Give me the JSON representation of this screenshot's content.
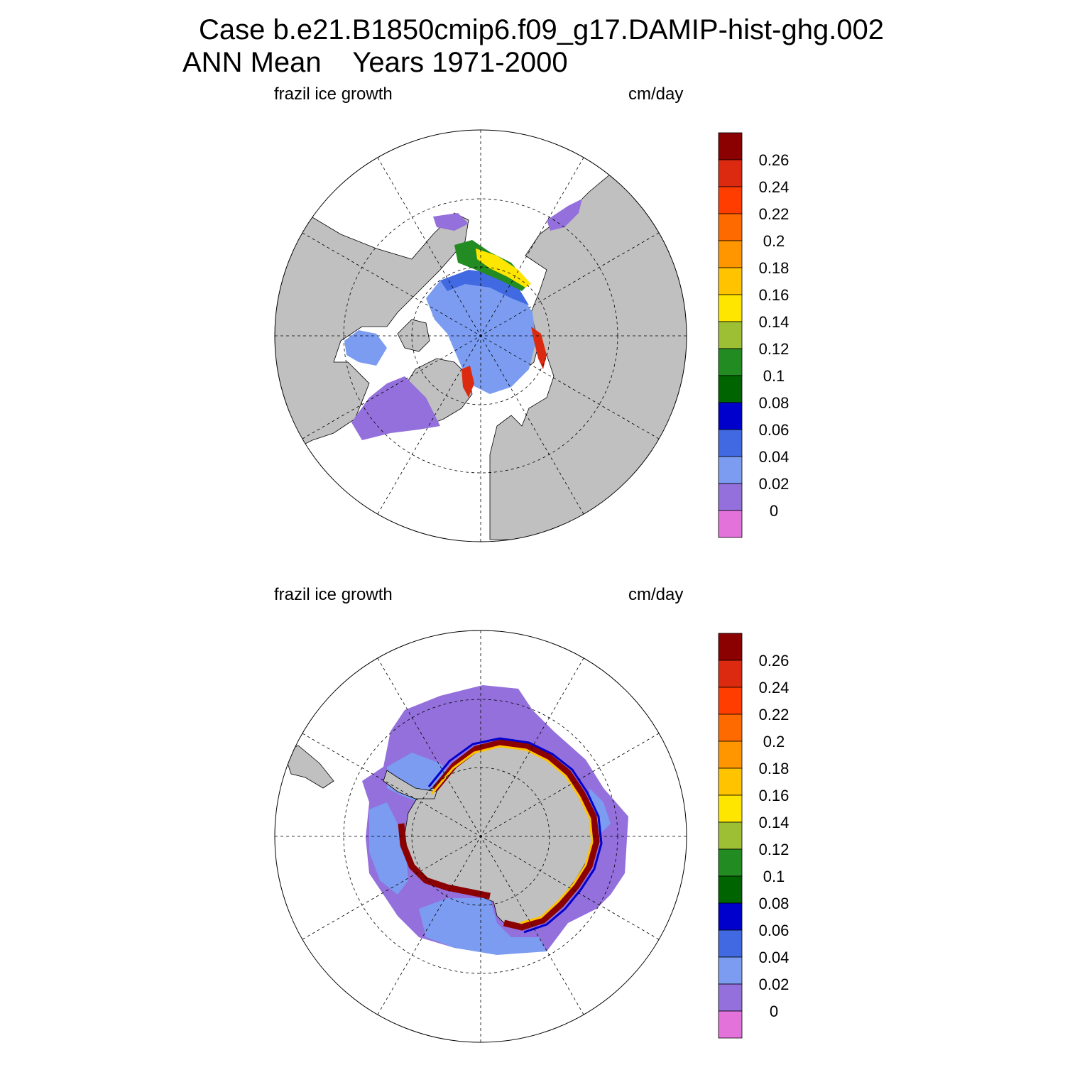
{
  "title": {
    "line1": "Case b.e21.B1850cmip6.f09_g17.DAMIP-hist-ghg.002",
    "line2": "ANN Mean    Years 1971-2000"
  },
  "panels": [
    {
      "id": "north",
      "variable_label": "frazil ice growth",
      "units_label": "cm/day",
      "hemisphere": "Northern Hemisphere polar stereographic"
    },
    {
      "id": "south",
      "variable_label": "frazil ice growth",
      "units_label": "cm/day",
      "hemisphere": "Southern Hemisphere polar stereographic"
    }
  ],
  "colorbar": {
    "levels": [
      "0.26",
      "0.24",
      "0.22",
      "0.2",
      "0.18",
      "0.16",
      "0.14",
      "0.12",
      "0.1",
      "0.08",
      "0.06",
      "0.04",
      "0.02",
      "0"
    ],
    "colors": [
      "#8b0000",
      "#dc2a10",
      "#ff3d00",
      "#ff6a00",
      "#ff9600",
      "#ffc300",
      "#ffe600",
      "#9cbf34",
      "#228b22",
      "#006400",
      "#0000cd",
      "#4169e1",
      "#7b9cf0",
      "#9370db",
      "#e373da"
    ]
  },
  "map_colors": {
    "land": "#c0c0c0",
    "ocean": "#ffffff",
    "grid": "#000000"
  }
}
